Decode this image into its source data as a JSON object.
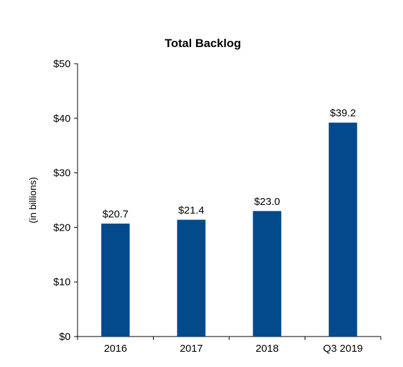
{
  "chart_data": {
    "type": "bar",
    "title": "Total Backlog",
    "ylabel": "(in billions)",
    "xlabel": "",
    "categories": [
      "2016",
      "2017",
      "2018",
      "Q3 2019"
    ],
    "values": [
      20.7,
      21.4,
      23.0,
      39.2
    ],
    "data_labels": [
      "$20.7",
      "$21.4",
      "$23.0",
      "$39.2"
    ],
    "ylim": [
      0,
      50
    ],
    "yticks": [
      0,
      10,
      20,
      30,
      40,
      50
    ],
    "ytick_labels": [
      "$0",
      "$10",
      "$20",
      "$30",
      "$40",
      "$50"
    ],
    "grid": false,
    "legend": "none",
    "colors": {
      "bar": "#034a8d",
      "axis": "#000000",
      "text": "#000000"
    }
  }
}
